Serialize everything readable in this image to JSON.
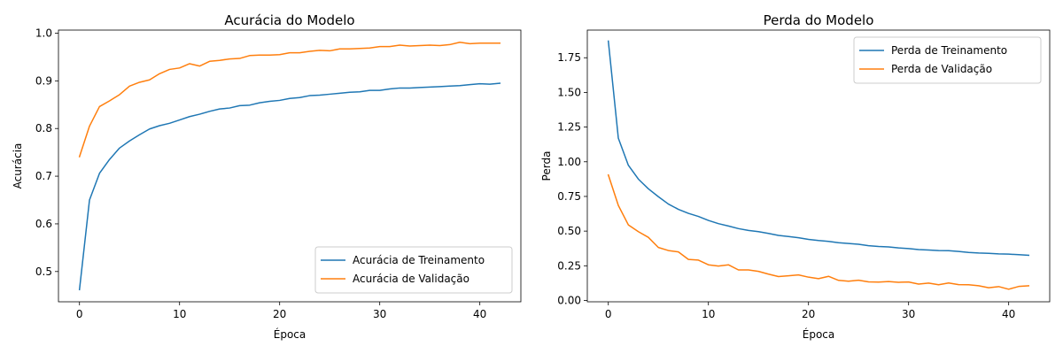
{
  "chart_data": [
    {
      "type": "line",
      "title": "Acurácia do Modelo",
      "xlabel": "Época",
      "ylabel": "Acurácia",
      "xlim": [
        -2.1,
        44.1
      ],
      "ylim": [
        0.4365,
        1.0065
      ],
      "xticks": [
        0,
        10,
        20,
        30,
        40
      ],
      "yticks": [
        0.5,
        0.6,
        0.7,
        0.8,
        0.9,
        1.0
      ],
      "ytick_labels": [
        "0.5",
        "0.6",
        "0.7",
        "0.8",
        "0.9",
        "1.0"
      ],
      "grid": false,
      "legend_position": "lower-right",
      "series": [
        {
          "name": "Acurácia de Treinamento",
          "color": "#1f77b4",
          "x": [
            0,
            1,
            2,
            3,
            4,
            5,
            6,
            7,
            8,
            9,
            10,
            11,
            12,
            13,
            14,
            15,
            16,
            17,
            18,
            19,
            20,
            21,
            22,
            23,
            24,
            25,
            26,
            27,
            28,
            29,
            30,
            31,
            32,
            33,
            34,
            35,
            36,
            37,
            38,
            39,
            40,
            41,
            42
          ],
          "values": [
            0.462,
            0.65,
            0.706,
            0.735,
            0.759,
            0.774,
            0.787,
            0.799,
            0.806,
            0.811,
            0.818,
            0.825,
            0.83,
            0.836,
            0.841,
            0.843,
            0.848,
            0.849,
            0.854,
            0.857,
            0.859,
            0.863,
            0.865,
            0.869,
            0.87,
            0.872,
            0.874,
            0.876,
            0.877,
            0.88,
            0.88,
            0.883,
            0.885,
            0.885,
            0.886,
            0.887,
            0.888,
            0.889,
            0.89,
            0.892,
            0.894,
            0.893,
            0.895
          ]
        },
        {
          "name": "Acurácia de Validação",
          "color": "#ff7f0e",
          "x": [
            0,
            1,
            2,
            3,
            4,
            5,
            6,
            7,
            8,
            9,
            10,
            11,
            12,
            13,
            14,
            15,
            16,
            17,
            18,
            19,
            20,
            21,
            22,
            23,
            24,
            25,
            26,
            27,
            28,
            29,
            30,
            31,
            32,
            33,
            34,
            35,
            36,
            37,
            38,
            39,
            40,
            41,
            42
          ],
          "values": [
            0.741,
            0.805,
            0.846,
            0.858,
            0.871,
            0.889,
            0.897,
            0.902,
            0.915,
            0.924,
            0.927,
            0.936,
            0.931,
            0.941,
            0.943,
            0.946,
            0.947,
            0.953,
            0.954,
            0.954,
            0.955,
            0.959,
            0.959,
            0.962,
            0.964,
            0.963,
            0.967,
            0.967,
            0.968,
            0.969,
            0.972,
            0.972,
            0.975,
            0.973,
            0.974,
            0.975,
            0.974,
            0.976,
            0.981,
            0.978,
            0.979,
            0.979,
            0.979
          ]
        }
      ]
    },
    {
      "type": "line",
      "title": "Perda do Modelo",
      "xlabel": "Época",
      "ylabel": "Perda",
      "xlim": [
        -2.1,
        44.1
      ],
      "ylim": [
        -0.0096,
        1.9494
      ],
      "xticks": [
        0,
        10,
        20,
        30,
        40
      ],
      "yticks": [
        0.0,
        0.25,
        0.5,
        0.75,
        1.0,
        1.25,
        1.5,
        1.75
      ],
      "ytick_labels": [
        "0.00",
        "0.25",
        "0.50",
        "0.75",
        "1.00",
        "1.25",
        "1.50",
        "1.75"
      ],
      "grid": false,
      "legend_position": "upper-right",
      "series": [
        {
          "name": "Perda de Treinamento",
          "color": "#1f77b4",
          "x": [
            0,
            1,
            2,
            3,
            4,
            5,
            6,
            7,
            8,
            9,
            10,
            11,
            12,
            13,
            14,
            15,
            16,
            17,
            18,
            19,
            20,
            21,
            22,
            23,
            24,
            25,
            26,
            27,
            28,
            29,
            30,
            31,
            32,
            33,
            34,
            35,
            36,
            37,
            38,
            39,
            40,
            41,
            42
          ],
          "values": [
            1.87,
            1.17,
            0.975,
            0.875,
            0.805,
            0.748,
            0.695,
            0.657,
            0.628,
            0.606,
            0.577,
            0.554,
            0.537,
            0.518,
            0.505,
            0.496,
            0.483,
            0.469,
            0.461,
            0.452,
            0.44,
            0.432,
            0.426,
            0.416,
            0.411,
            0.405,
            0.395,
            0.389,
            0.386,
            0.379,
            0.374,
            0.367,
            0.364,
            0.36,
            0.359,
            0.353,
            0.346,
            0.342,
            0.34,
            0.336,
            0.334,
            0.33,
            0.326
          ]
        },
        {
          "name": "Perda de Validação",
          "color": "#ff7f0e",
          "x": [
            0,
            1,
            2,
            3,
            4,
            5,
            6,
            7,
            8,
            9,
            10,
            11,
            12,
            13,
            14,
            15,
            16,
            17,
            18,
            19,
            20,
            21,
            22,
            23,
            24,
            25,
            26,
            27,
            28,
            29,
            30,
            31,
            32,
            33,
            34,
            35,
            36,
            37,
            38,
            39,
            40,
            41,
            42
          ],
          "values": [
            0.905,
            0.685,
            0.545,
            0.496,
            0.455,
            0.382,
            0.36,
            0.35,
            0.296,
            0.291,
            0.257,
            0.248,
            0.257,
            0.22,
            0.22,
            0.21,
            0.19,
            0.172,
            0.178,
            0.184,
            0.168,
            0.157,
            0.174,
            0.145,
            0.139,
            0.146,
            0.134,
            0.132,
            0.136,
            0.131,
            0.133,
            0.118,
            0.125,
            0.113,
            0.126,
            0.114,
            0.113,
            0.106,
            0.092,
            0.1,
            0.081,
            0.101,
            0.106
          ]
        }
      ]
    }
  ]
}
